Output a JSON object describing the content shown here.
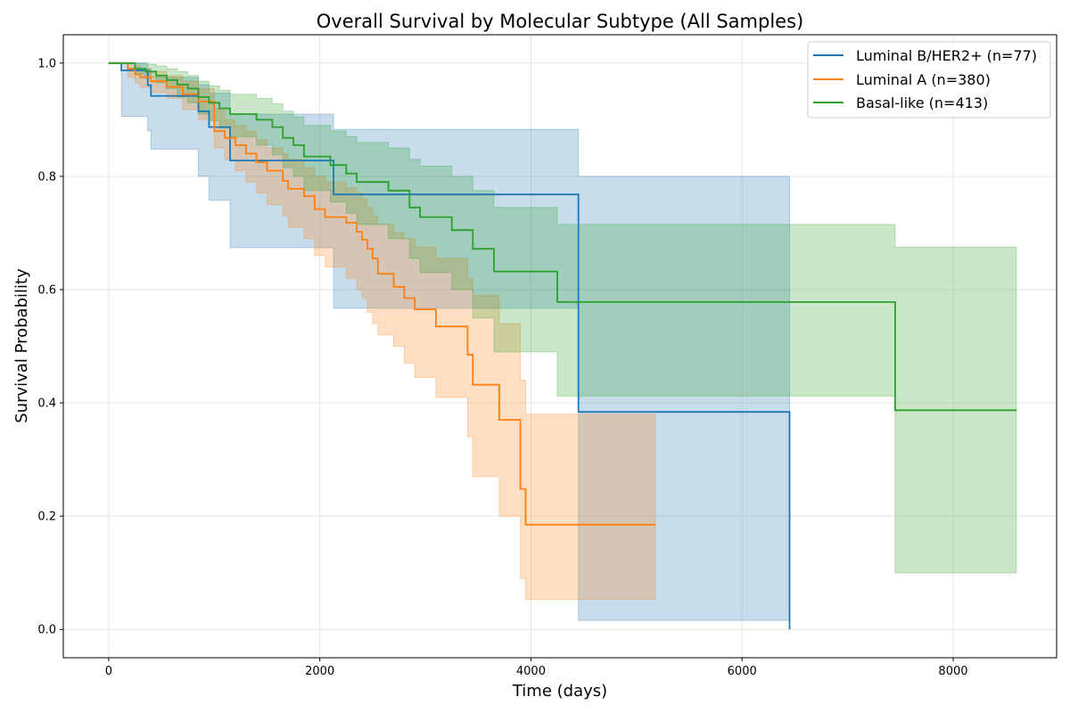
{
  "chart_data": {
    "type": "line",
    "title": "Overall Survival by Molecular Subtype (All Samples)",
    "xlabel": "Time (days)",
    "ylabel": "Survival Probability",
    "xlim": [
      -430,
      8980
    ],
    "ylim": [
      -0.05,
      1.05
    ],
    "xticks": [
      0,
      2000,
      4000,
      6000,
      8000
    ],
    "yticks": [
      0.0,
      0.2,
      0.4,
      0.6,
      0.8,
      1.0
    ],
    "xtick_labels": [
      "0",
      "2000",
      "4000",
      "6000",
      "8000"
    ],
    "ytick_labels": [
      "0.0",
      "0.2",
      "0.4",
      "0.6",
      "0.8",
      "1.0"
    ],
    "grid": true,
    "legend_position": "top-right",
    "step": "post",
    "series": [
      {
        "name": "Luminal B/HER2+ (n=77)",
        "color": "#1f77b4",
        "x": [
          0,
          120,
          370,
          400,
          850,
          950,
          1150,
          2130,
          4450,
          6450,
          6450
        ],
        "y": [
          1.0,
          0.987,
          0.961,
          0.942,
          0.915,
          0.887,
          0.828,
          0.768,
          0.384,
          0.384,
          0.0
        ],
        "ci_lower": [
          1.0,
          0.906,
          0.88,
          0.848,
          0.8,
          0.758,
          0.674,
          0.567,
          0.016,
          0.016,
          0.016
        ],
        "ci_upper": [
          1.0,
          1.0,
          0.99,
          0.975,
          0.962,
          0.947,
          0.91,
          0.883,
          0.8,
          0.8,
          0.8
        ]
      },
      {
        "name": "Luminal A (n=380)",
        "color": "#ff7f0e",
        "x": [
          0,
          180,
          250,
          300,
          400,
          550,
          700,
          850,
          1000,
          1100,
          1200,
          1300,
          1400,
          1500,
          1650,
          1700,
          1850,
          1950,
          2050,
          2250,
          2350,
          2400,
          2450,
          2500,
          2550,
          2700,
          2800,
          2900,
          3100,
          3400,
          3450,
          3700,
          3900,
          3950,
          5180
        ],
        "y": [
          1.0,
          0.99,
          0.98,
          0.975,
          0.968,
          0.958,
          0.945,
          0.932,
          0.88,
          0.868,
          0.855,
          0.84,
          0.825,
          0.81,
          0.792,
          0.778,
          0.765,
          0.742,
          0.728,
          0.718,
          0.702,
          0.688,
          0.672,
          0.655,
          0.628,
          0.605,
          0.585,
          0.565,
          0.535,
          0.485,
          0.432,
          0.37,
          0.248,
          0.185,
          0.185
        ],
        "ci_lower": [
          1.0,
          0.975,
          0.965,
          0.957,
          0.948,
          0.938,
          0.918,
          0.9,
          0.85,
          0.83,
          0.81,
          0.79,
          0.77,
          0.75,
          0.73,
          0.71,
          0.69,
          0.66,
          0.64,
          0.62,
          0.6,
          0.585,
          0.56,
          0.54,
          0.52,
          0.5,
          0.47,
          0.445,
          0.41,
          0.34,
          0.27,
          0.2,
          0.09,
          0.053,
          0.053
        ],
        "ci_upper": [
          1.0,
          1.0,
          0.995,
          0.99,
          0.985,
          0.978,
          0.968,
          0.955,
          0.92,
          0.9,
          0.89,
          0.88,
          0.865,
          0.85,
          0.84,
          0.83,
          0.815,
          0.8,
          0.79,
          0.78,
          0.77,
          0.76,
          0.745,
          0.73,
          0.715,
          0.7,
          0.69,
          0.675,
          0.655,
          0.62,
          0.59,
          0.54,
          0.44,
          0.38,
          0.38
        ]
      },
      {
        "name": "Basal-like (n=413)",
        "color": "#2ca02c",
        "x": [
          0,
          250,
          350,
          450,
          550,
          650,
          750,
          850,
          950,
          1050,
          1150,
          1400,
          1550,
          1650,
          1750,
          1850,
          2100,
          2250,
          2350,
          2650,
          2850,
          2950,
          3250,
          3450,
          3650,
          4250,
          7450,
          8600
        ],
        "y": [
          1.0,
          0.99,
          0.985,
          0.978,
          0.97,
          0.962,
          0.955,
          0.94,
          0.93,
          0.92,
          0.91,
          0.9,
          0.887,
          0.868,
          0.855,
          0.835,
          0.82,
          0.805,
          0.79,
          0.775,
          0.745,
          0.728,
          0.705,
          0.672,
          0.632,
          0.578,
          0.387,
          0.387
        ],
        "ci_lower": [
          1.0,
          0.98,
          0.975,
          0.965,
          0.955,
          0.94,
          0.93,
          0.91,
          0.898,
          0.885,
          0.87,
          0.855,
          0.838,
          0.815,
          0.8,
          0.775,
          0.755,
          0.735,
          0.715,
          0.69,
          0.655,
          0.63,
          0.6,
          0.55,
          0.49,
          0.412,
          0.1,
          0.1
        ],
        "ci_upper": [
          1.0,
          1.0,
          0.998,
          0.995,
          0.99,
          0.985,
          0.978,
          0.968,
          0.96,
          0.952,
          0.945,
          0.938,
          0.928,
          0.915,
          0.905,
          0.89,
          0.88,
          0.87,
          0.86,
          0.85,
          0.83,
          0.818,
          0.8,
          0.775,
          0.745,
          0.715,
          0.675,
          0.675
        ]
      }
    ]
  }
}
